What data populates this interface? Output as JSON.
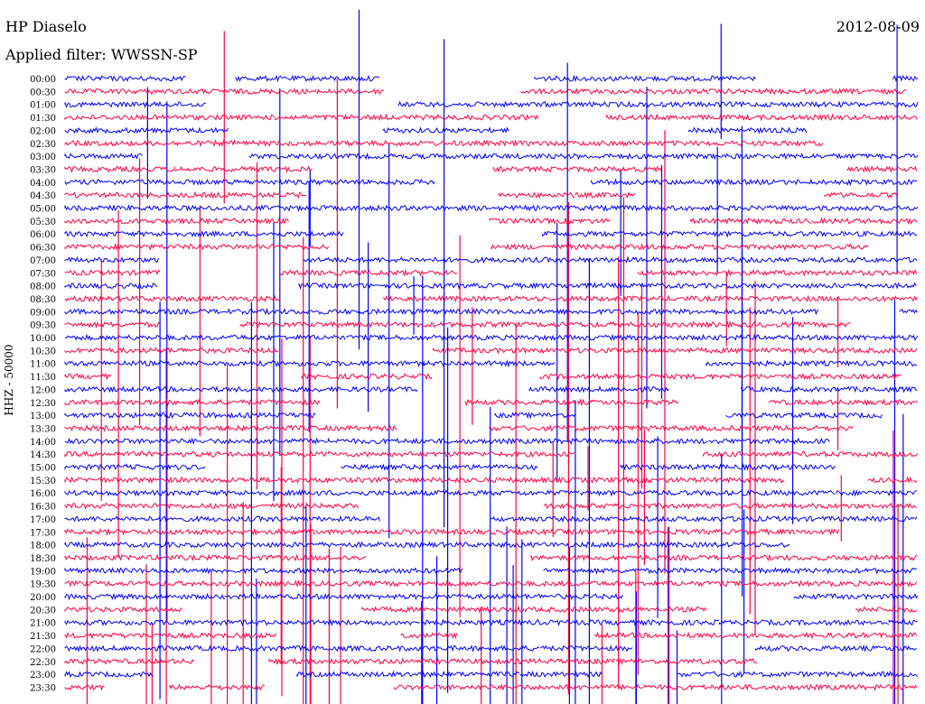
{
  "header": {
    "station": "HP Diaselo",
    "date": "2012-08-09",
    "filter": "Applied filter: WWSSN-SP"
  },
  "chart_data": {
    "type": "line",
    "title": "HP Diaselo",
    "channel_label": "HHZ - 50000",
    "row_labels": [
      "00:00",
      "00:30",
      "01:00",
      "01:30",
      "02:00",
      "02:30",
      "03:00",
      "03:30",
      "04:00",
      "04:30",
      "05:00",
      "05:30",
      "06:00",
      "06:30",
      "07:00",
      "07:30",
      "08:00",
      "08:30",
      "09:00",
      "09:30",
      "10:00",
      "10:30",
      "11:00",
      "11:30",
      "12:00",
      "12:30",
      "13:00",
      "13:30",
      "14:00",
      "14:30",
      "15:00",
      "15:30",
      "16:00",
      "16:30",
      "17:00",
      "17:30",
      "18:00",
      "18:30",
      "19:00",
      "19:30",
      "20:00",
      "20:30",
      "21:00",
      "21:30",
      "22:00",
      "22:30",
      "23:00",
      "23:30"
    ],
    "trace_colors": [
      "#0000ff",
      "#ff0044"
    ],
    "grid": false,
    "legend": "none"
  }
}
